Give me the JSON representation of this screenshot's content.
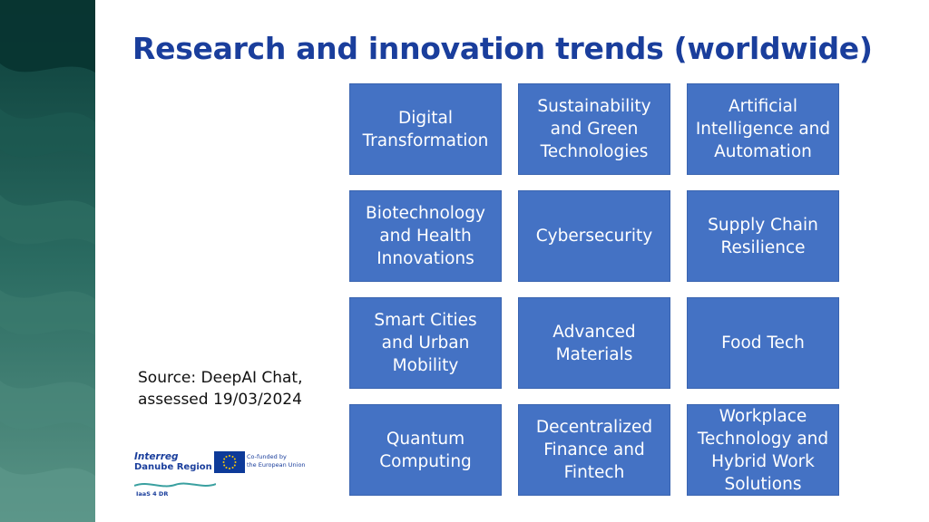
{
  "title": "Research and innovation trends (worldwide)",
  "tiles": [
    {
      "label": "Digital\nTransformation"
    },
    {
      "label": "Sustainability\nand Green\nTechnologies"
    },
    {
      "label": "Artificial\nIntelligence and\nAutomation"
    },
    {
      "label": "Biotechnology\nand Health\nInnovations"
    },
    {
      "label": "Cybersecurity"
    },
    {
      "label": "Supply Chain\nResilience"
    },
    {
      "label": "Smart Cities\nand Urban\nMobility"
    },
    {
      "label": "Advanced\nMaterials"
    },
    {
      "label": "Food Tech"
    },
    {
      "label": "Quantum\nComputing"
    },
    {
      "label": "Decentralized\nFinance and\nFintech"
    },
    {
      "label": "Workplace\nTechnology and\nHybrid Work\nSolutions"
    }
  ],
  "source": "Source: DeepAI Chat,\nassessed 19/03/2024",
  "logos": {
    "interreg_line1": "Interreg",
    "interreg_line2": "Danube Region",
    "eu_text": "Co-funded by\nthe European Union",
    "project": "IaaS 4 DR"
  },
  "colors": {
    "title": "#1a3e9c",
    "tile": "#4472c4",
    "band_dark": "#0f4a44",
    "band_light": "#4e8a7c"
  }
}
